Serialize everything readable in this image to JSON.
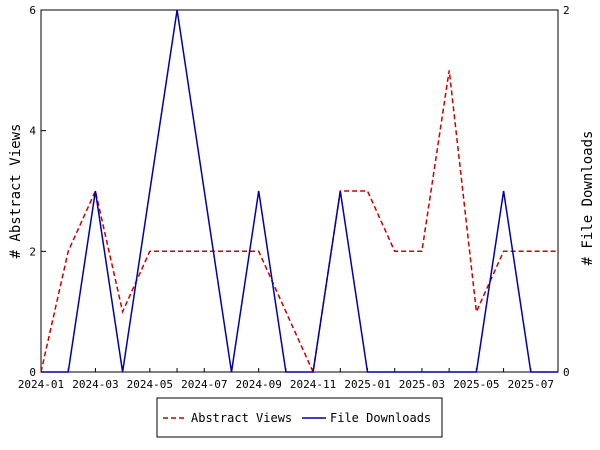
{
  "chart_data": {
    "type": "line",
    "x": [
      "2024-01",
      "2024-02",
      "2024-03",
      "2024-04",
      "2024-05",
      "2024-06",
      "2024-07",
      "2024-08",
      "2024-09",
      "2024-10",
      "2024-11",
      "2024-12",
      "2025-01",
      "2025-02",
      "2025-03",
      "2025-04",
      "2025-05",
      "2025-06",
      "2025-07",
      "2025-08"
    ],
    "x_tick_labels": [
      "2024-01",
      "2024-03",
      "2024-05",
      "2024-07",
      "2024-09",
      "2024-11",
      "2025-01",
      "2025-03",
      "2025-05",
      "2025-07"
    ],
    "series": [
      {
        "name": "Abstract Views",
        "axis": "left",
        "color": "#cc0000",
        "style": "dashed",
        "values": [
          0,
          2,
          3,
          1,
          2,
          2,
          2,
          2,
          2,
          1,
          0,
          3,
          3,
          2,
          2,
          5,
          1,
          2,
          2,
          2
        ]
      },
      {
        "name": "File Downloads",
        "axis": "right",
        "color": "#0000aa",
        "style": "solid",
        "values": [
          0,
          0,
          1,
          0,
          1,
          2,
          1,
          0,
          1,
          0,
          0,
          1,
          0,
          0,
          0,
          0,
          0,
          1,
          0,
          0
        ]
      }
    ],
    "ylabel": "# Abstract Views",
    "y2label": "# File Downloads",
    "ylim": [
      0,
      6
    ],
    "y_ticks": [
      0,
      2,
      4,
      6
    ],
    "y2lim": [
      0,
      2
    ],
    "y2_ticks": [
      0,
      2
    ],
    "grid": false,
    "legend_position": "bottom-center"
  }
}
